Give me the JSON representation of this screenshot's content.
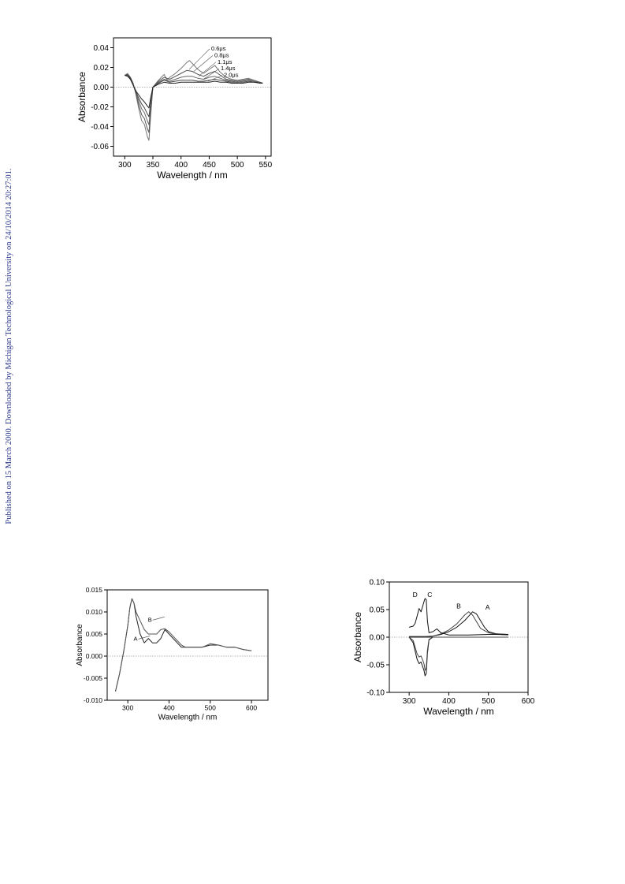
{
  "sidebar_note": "Published on 15 March 2000. Downloaded by Michigan Technological University on 24/10/2014 20:27:01.",
  "chart_data": [
    {
      "type": "line",
      "xlabel": "Wavelength / nm",
      "ylabel": "Absorbance",
      "xlim": [
        280,
        560
      ],
      "ylim": [
        -0.07,
        0.05
      ],
      "xticks": [
        300,
        350,
        400,
        450,
        500,
        550
      ],
      "yticks": [
        -0.06,
        -0.04,
        -0.02,
        0.0,
        0.02,
        0.04
      ],
      "ytick_labels": [
        "-0.06",
        "-0.04",
        "-0.02",
        "0.00",
        "0.02",
        "0.04"
      ],
      "zero_line": true,
      "legend_placement": "top-right",
      "series": [
        {
          "name": "0.6μs",
          "x": [
            300,
            305,
            310,
            315,
            320,
            325,
            330,
            335,
            340,
            343,
            346,
            350,
            360,
            365,
            370,
            375,
            380,
            390,
            400,
            410,
            415,
            420,
            430,
            440,
            450,
            460,
            470,
            480,
            490,
            500,
            510,
            520,
            530,
            540,
            545
          ],
          "y": [
            0.012,
            0.014,
            0.01,
            0.004,
            -0.008,
            -0.022,
            -0.034,
            -0.038,
            -0.05,
            -0.054,
            -0.03,
            0.0,
            0.007,
            0.01,
            0.013,
            0.007,
            0.01,
            0.014,
            0.019,
            0.025,
            0.027,
            0.024,
            0.018,
            0.014,
            0.018,
            0.022,
            0.015,
            0.01,
            0.008,
            0.007,
            0.008,
            0.009,
            0.007,
            0.005,
            0.004
          ]
        },
        {
          "name": "0.8μs",
          "x": [
            300,
            305,
            310,
            315,
            320,
            325,
            330,
            335,
            340,
            343,
            346,
            350,
            360,
            370,
            380,
            390,
            400,
            410,
            420,
            430,
            440,
            450,
            460,
            470,
            480,
            490,
            500,
            510,
            520,
            530,
            540,
            545
          ],
          "y": [
            0.012,
            0.013,
            0.01,
            0.003,
            -0.007,
            -0.018,
            -0.028,
            -0.032,
            -0.042,
            -0.046,
            -0.025,
            0.0,
            0.006,
            0.01,
            0.008,
            0.011,
            0.014,
            0.017,
            0.016,
            0.013,
            0.011,
            0.014,
            0.016,
            0.012,
            0.008,
            0.007,
            0.006,
            0.007,
            0.008,
            0.006,
            0.005,
            0.004
          ]
        },
        {
          "name": "1.1μs",
          "x": [
            300,
            305,
            310,
            315,
            320,
            325,
            330,
            335,
            340,
            343,
            346,
            350,
            360,
            370,
            380,
            390,
            400,
            410,
            420,
            430,
            440,
            450,
            460,
            470,
            480,
            490,
            500,
            510,
            520,
            530,
            540,
            545
          ],
          "y": [
            0.012,
            0.012,
            0.009,
            0.003,
            -0.006,
            -0.014,
            -0.022,
            -0.026,
            -0.034,
            -0.038,
            -0.02,
            0.0,
            0.005,
            0.008,
            0.006,
            0.008,
            0.01,
            0.011,
            0.011,
            0.009,
            0.008,
            0.01,
            0.011,
            0.009,
            0.007,
            0.006,
            0.005,
            0.006,
            0.007,
            0.006,
            0.005,
            0.004
          ]
        },
        {
          "name": "1.4μs",
          "x": [
            300,
            305,
            310,
            315,
            320,
            325,
            330,
            335,
            340,
            343,
            346,
            350,
            360,
            370,
            380,
            390,
            400,
            410,
            420,
            430,
            440,
            450,
            460,
            470,
            480,
            490,
            500,
            510,
            520,
            530,
            540,
            545
          ],
          "y": [
            0.012,
            0.012,
            0.009,
            0.002,
            -0.005,
            -0.011,
            -0.017,
            -0.021,
            -0.027,
            -0.03,
            -0.016,
            0.0,
            0.004,
            0.007,
            0.005,
            0.006,
            0.007,
            0.007,
            0.007,
            0.006,
            0.006,
            0.007,
            0.008,
            0.007,
            0.006,
            0.005,
            0.005,
            0.005,
            0.006,
            0.005,
            0.005,
            0.004
          ]
        },
        {
          "name": "2.0μs",
          "x": [
            300,
            305,
            310,
            315,
            320,
            325,
            330,
            335,
            340,
            343,
            346,
            350,
            360,
            370,
            380,
            390,
            400,
            410,
            420,
            430,
            440,
            450,
            460,
            470,
            480,
            490,
            500,
            510,
            520,
            530,
            540,
            545
          ],
          "y": [
            0.012,
            0.011,
            0.008,
            0.002,
            -0.004,
            -0.008,
            -0.012,
            -0.015,
            -0.019,
            -0.021,
            -0.011,
            0.0,
            0.003,
            0.005,
            0.004,
            0.004,
            0.005,
            0.005,
            0.005,
            0.005,
            0.005,
            0.005,
            0.006,
            0.005,
            0.005,
            0.004,
            0.004,
            0.004,
            0.005,
            0.005,
            0.004,
            0.004
          ]
        }
      ]
    },
    {
      "type": "line",
      "xlabel": "Wavelength / nm",
      "ylabel": "Absorbance",
      "xlim": [
        250,
        640
      ],
      "ylim": [
        -0.01,
        0.015
      ],
      "xticks": [
        300,
        400,
        500,
        600
      ],
      "yticks": [
        -0.01,
        -0.005,
        0.0,
        0.005,
        0.01,
        0.015
      ],
      "ytick_labels": [
        "-0.010",
        "-0.005",
        "0.000",
        "0.005",
        "0.010",
        "0.015"
      ],
      "zero_line": true,
      "series": [
        {
          "name": "A",
          "x": [
            270,
            280,
            290,
            300,
            305,
            310,
            315,
            320,
            330,
            340,
            350,
            360,
            370,
            380,
            390,
            400,
            410,
            420,
            430,
            440,
            460,
            480,
            500,
            520,
            540,
            560,
            580,
            600
          ],
          "y": [
            -0.008,
            -0.004,
            0.001,
            0.007,
            0.011,
            0.013,
            0.012,
            0.009,
            0.005,
            0.003,
            0.004,
            0.003,
            0.003,
            0.004,
            0.006,
            0.005,
            0.004,
            0.003,
            0.002,
            0.002,
            0.002,
            0.002,
            0.0025,
            0.0025,
            0.002,
            0.002,
            0.0015,
            0.0012
          ]
        },
        {
          "name": "B",
          "x": [
            270,
            280,
            290,
            300,
            305,
            310,
            315,
            320,
            330,
            340,
            350,
            360,
            370,
            380,
            390,
            400,
            410,
            420,
            430,
            440,
            460,
            480,
            500,
            520,
            540,
            560,
            580,
            600
          ],
          "y": [
            -0.008,
            -0.004,
            0.001,
            0.007,
            0.011,
            0.013,
            0.012,
            0.01,
            0.008,
            0.006,
            0.005,
            0.005,
            0.005,
            0.006,
            0.0062,
            0.0055,
            0.0045,
            0.0035,
            0.0025,
            0.002,
            0.002,
            0.002,
            0.0028,
            0.0025,
            0.002,
            0.002,
            0.0015,
            0.0012
          ]
        }
      ]
    },
    {
      "type": "line",
      "xlabel": "Wavelength / nm",
      "ylabel": "Absorbance",
      "xlim": [
        250,
        600
      ],
      "ylim": [
        -0.1,
        0.1
      ],
      "xticks": [
        300,
        400,
        500,
        600
      ],
      "yticks": [
        -0.1,
        -0.05,
        0.0,
        0.05,
        0.1
      ],
      "ytick_labels": [
        "-0.10",
        "-0.05",
        "0.00",
        "0.05",
        "0.10"
      ],
      "zero_line": true,
      "series": [
        {
          "name": "A",
          "x": [
            300,
            320,
            340,
            360,
            380,
            400,
            420,
            440,
            450,
            460,
            470,
            480,
            490,
            500,
            520,
            550
          ],
          "y": [
            0.001,
            0.001,
            0.001,
            0.002,
            0.005,
            0.01,
            0.018,
            0.03,
            0.038,
            0.046,
            0.042,
            0.03,
            0.018,
            0.01,
            0.006,
            0.005
          ]
        },
        {
          "name": "B",
          "x": [
            300,
            320,
            340,
            360,
            380,
            400,
            420,
            430,
            440,
            450,
            460,
            470,
            480,
            500,
            520,
            550
          ],
          "y": [
            0.001,
            0.001,
            0.001,
            0.002,
            0.006,
            0.013,
            0.024,
            0.032,
            0.04,
            0.046,
            0.04,
            0.028,
            0.016,
            0.008,
            0.005,
            0.004
          ]
        },
        {
          "name": "C",
          "x": [
            300,
            310,
            320,
            325,
            330,
            335,
            340,
            343,
            346,
            350,
            355,
            360,
            370,
            380,
            400,
            450,
            500,
            550
          ],
          "y": [
            0.0,
            0.0,
            0.0,
            0.0,
            0.0,
            0.0,
            0.0,
            0.0,
            0.0,
            0.0,
            0.0,
            0.0,
            0.0,
            0.0,
            0.0,
            0.0,
            0.0,
            0.0
          ]
        },
        {
          "name": "D",
          "x": [
            300,
            310,
            315,
            320,
            325,
            330,
            335,
            338,
            340,
            343,
            346,
            350,
            360,
            370,
            380,
            400,
            450,
            500,
            550
          ],
          "y": [
            0.018,
            0.02,
            0.025,
            0.038,
            0.052,
            0.046,
            0.058,
            0.066,
            0.07,
            0.068,
            0.03,
            0.008,
            0.01,
            0.015,
            0.008,
            0.004,
            0.004,
            0.005,
            0.005
          ]
        },
        {
          "name": "",
          "x": [
            300,
            310,
            315,
            320,
            325,
            330,
            335,
            338,
            340,
            343,
            346,
            350,
            360,
            370,
            380,
            400,
            450,
            500,
            550
          ],
          "y": [
            0.0,
            -0.01,
            -0.025,
            -0.04,
            -0.048,
            -0.045,
            -0.055,
            -0.062,
            -0.07,
            -0.066,
            -0.03,
            -0.005,
            0.0,
            0.0,
            0.0,
            0.0,
            0.0,
            0.0,
            0.0
          ]
        },
        {
          "name": "",
          "x": [
            300,
            310,
            315,
            320,
            325,
            330,
            335,
            338,
            340,
            343,
            346,
            350,
            360,
            370,
            380,
            400,
            450,
            500,
            550
          ],
          "y": [
            0.0,
            -0.006,
            -0.018,
            -0.03,
            -0.036,
            -0.034,
            -0.043,
            -0.05,
            -0.06,
            -0.056,
            -0.024,
            -0.004,
            0.0,
            0.0,
            0.0,
            0.0,
            0.0,
            0.0,
            0.0
          ]
        }
      ]
    }
  ]
}
